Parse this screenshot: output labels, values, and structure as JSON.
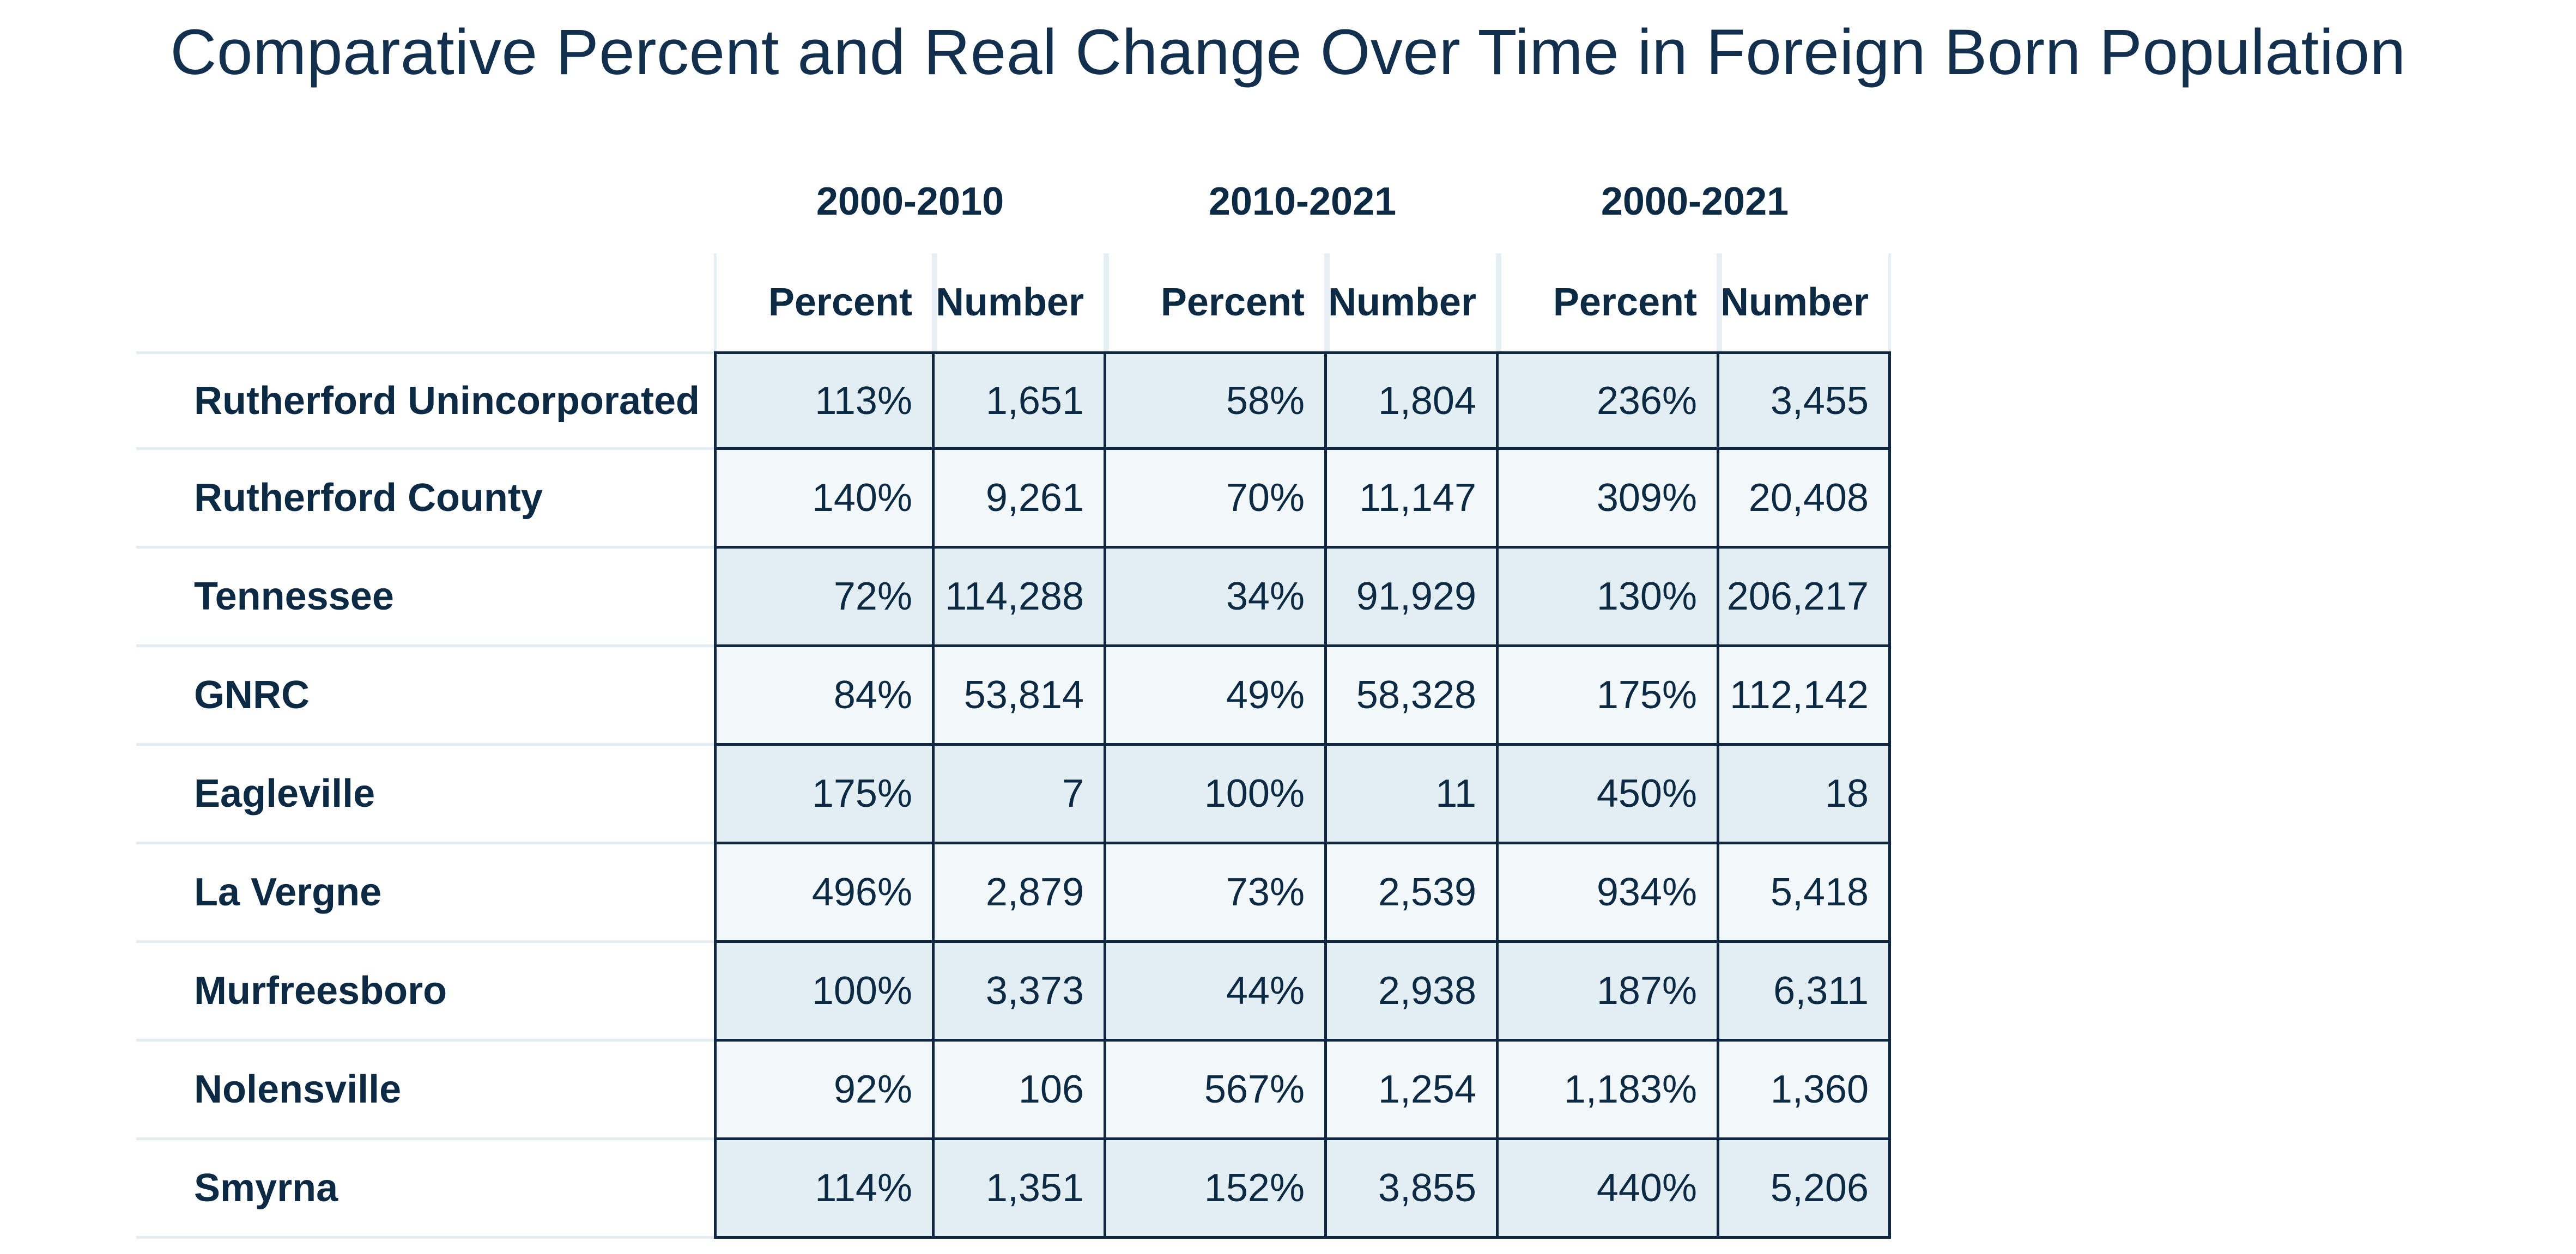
{
  "chart_data": {
    "type": "table",
    "title": "Comparative Percent and Real Change Over Time in Foreign Born Population",
    "column_groups": [
      {
        "label": "2000-2010",
        "columns": [
          "Percent",
          "Number"
        ]
      },
      {
        "label": "2010-2021",
        "columns": [
          "Percent",
          "Number"
        ]
      },
      {
        "label": "2000-2021",
        "columns": [
          "Percent",
          "Number"
        ]
      }
    ],
    "rows": [
      {
        "label": "Rutherford Unincorporated",
        "values": [
          "113%",
          "1,651",
          "58%",
          "1,804",
          "236%",
          "3,455"
        ]
      },
      {
        "label": "Rutherford County",
        "values": [
          "140%",
          "9,261",
          "70%",
          "11,147",
          "309%",
          "20,408"
        ]
      },
      {
        "label": "Tennessee",
        "values": [
          "72%",
          "114,288",
          "34%",
          "91,929",
          "130%",
          "206,217"
        ]
      },
      {
        "label": "GNRC",
        "values": [
          "84%",
          "53,814",
          "49%",
          "58,328",
          "175%",
          "112,142"
        ]
      },
      {
        "label": "Eagleville",
        "values": [
          "175%",
          "7",
          "100%",
          "11",
          "450%",
          "18"
        ]
      },
      {
        "label": "La Vergne",
        "values": [
          "496%",
          "2,879",
          "73%",
          "2,539",
          "934%",
          "5,418"
        ]
      },
      {
        "label": "Murfreesboro",
        "values": [
          "100%",
          "3,373",
          "44%",
          "2,938",
          "187%",
          "6,311"
        ]
      },
      {
        "label": "Nolensville",
        "values": [
          "92%",
          "106",
          "567%",
          "1,254",
          "1,183%",
          "1,360"
        ]
      },
      {
        "label": "Smyrna",
        "values": [
          "114%",
          "1,351",
          "152%",
          "3,855",
          "440%",
          "5,206"
        ]
      }
    ],
    "colors": {
      "text": "#0d2a45",
      "row_shade_dark": "#e2eef2",
      "row_shade_light": "#f2f8f9",
      "grid_line": "#0f2740"
    }
  }
}
